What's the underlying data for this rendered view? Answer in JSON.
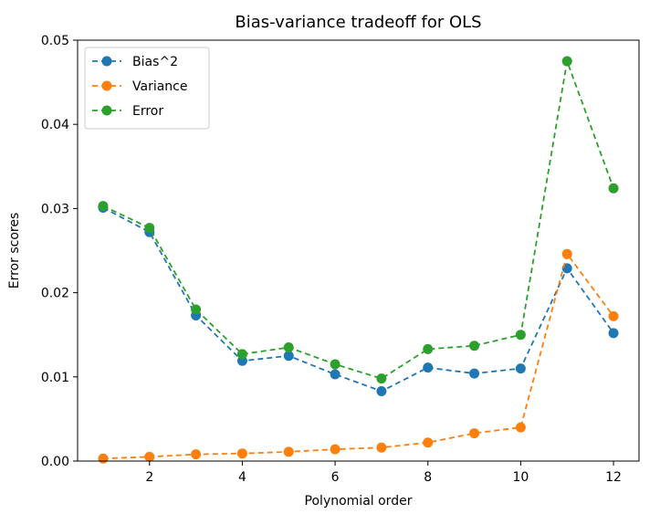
{
  "chart_data": {
    "type": "line",
    "title": "Bias-variance tradeoff for OLS",
    "xlabel": "Polynomial order",
    "ylabel": "Error scores",
    "x": [
      1,
      2,
      3,
      4,
      5,
      6,
      7,
      8,
      9,
      10,
      11,
      12
    ],
    "xlim": [
      0.45,
      12.55
    ],
    "ylim": [
      0,
      0.05
    ],
    "xticks": [
      2,
      4,
      6,
      8,
      10,
      12
    ],
    "xtick_labels": [
      "2",
      "4",
      "6",
      "8",
      "10",
      "12"
    ],
    "yticks": [
      0,
      0.01,
      0.02,
      0.03,
      0.04,
      0.05
    ],
    "ytick_labels": [
      "0.00",
      "0.01",
      "0.02",
      "0.03",
      "0.04",
      "0.05"
    ],
    "grid": false,
    "legend_position": "top-left",
    "line_style": "dashed",
    "marker": "circle",
    "series": [
      {
        "name": "Bias^2",
        "color": "#1f77b4",
        "values": [
          0.0301,
          0.0272,
          0.0173,
          0.0119,
          0.0125,
          0.0103,
          0.0083,
          0.0111,
          0.0104,
          0.011,
          0.0229,
          0.0152
        ]
      },
      {
        "name": "Variance",
        "color": "#ff7f0e",
        "values": [
          0.0003,
          0.0005,
          0.0008,
          0.0009,
          0.0011,
          0.0014,
          0.0016,
          0.0022,
          0.0033,
          0.004,
          0.0246,
          0.0172
        ]
      },
      {
        "name": "Error",
        "color": "#2ca02c",
        "values": [
          0.0303,
          0.0277,
          0.018,
          0.0127,
          0.0135,
          0.0115,
          0.0098,
          0.0133,
          0.0137,
          0.015,
          0.0475,
          0.0324
        ]
      }
    ]
  }
}
